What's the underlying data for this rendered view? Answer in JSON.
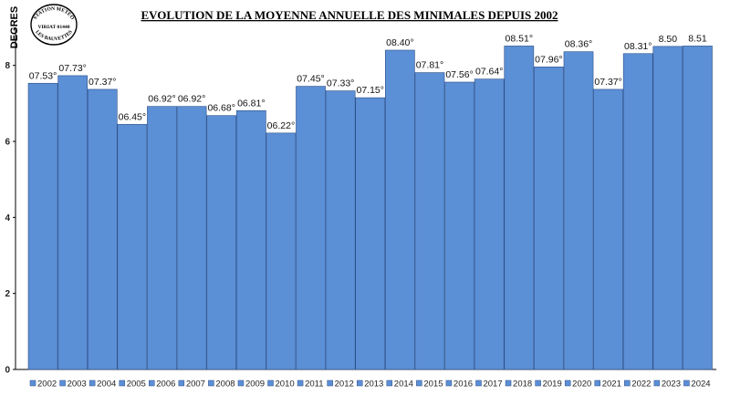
{
  "chart_data": {
    "type": "bar",
    "title": "EVOLUTION DE LA MOYENNE ANNUELLE DES MINIMALES DEPUIS 2002",
    "ylabel": "DEGRES",
    "xlabel": "",
    "ylim": [
      0,
      9
    ],
    "yticks": [
      0,
      2,
      4,
      6,
      8
    ],
    "grid": false,
    "legend_position": "bottom",
    "bar_color": "#5b8fd6",
    "categories": [
      "2002",
      "2003",
      "2004",
      "2005",
      "2006",
      "2007",
      "2008",
      "2009",
      "2010",
      "2011",
      "2012",
      "2013",
      "2014",
      "2015",
      "2016",
      "2017",
      "2018",
      "2019",
      "2020",
      "2021",
      "2022",
      "2023",
      "2024"
    ],
    "values": [
      7.53,
      7.73,
      7.37,
      6.45,
      6.92,
      6.92,
      6.68,
      6.81,
      6.22,
      7.45,
      7.33,
      7.15,
      8.4,
      7.81,
      7.56,
      7.64,
      8.51,
      7.96,
      8.36,
      7.37,
      8.31,
      8.5,
      8.51
    ],
    "data_labels": [
      "07.53°",
      "07.73°",
      "07.37°",
      "06.45°",
      "06.92°",
      "06.92°",
      "06.68°",
      "06.81°",
      "06.22°",
      "07.45°",
      "07.33°",
      "07.15°",
      "08.40°",
      "07.81°",
      "07.56°",
      "07.64°",
      "08.51°",
      "07.96°",
      "08.36°",
      "07.37°",
      "08.31°",
      "8.50",
      "8.51"
    ]
  },
  "stamp": {
    "top_text": "STATION METEO",
    "middle_text": "VIRIAT 01440",
    "bottom_text": "LES BAUVETTES"
  }
}
